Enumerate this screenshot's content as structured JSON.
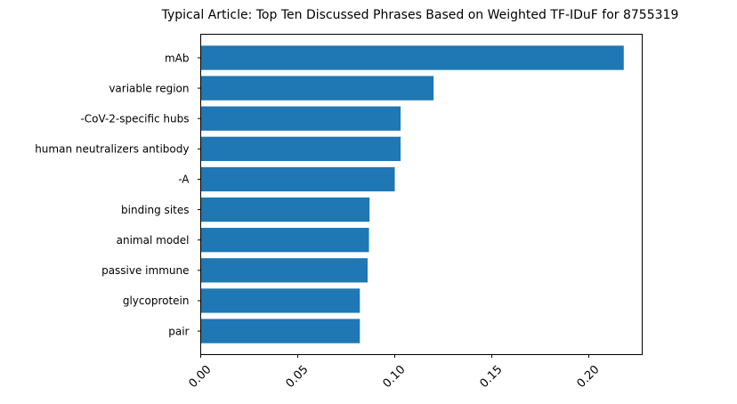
{
  "chart_data": {
    "type": "bar",
    "orientation": "horizontal",
    "title": "Typical Article: Top Ten Discussed Phrases Based on Weighted TF-IDuF for 8755319",
    "xlabel": "",
    "ylabel": "",
    "categories": [
      "mAb",
      "variable region",
      "-CoV-2-specific hubs",
      "human neutralizers antibody",
      "-A",
      "binding sites",
      "animal model",
      "passive immune",
      "glycoprotein",
      "pair"
    ],
    "values": [
      0.218,
      0.12,
      0.103,
      0.103,
      0.1,
      0.087,
      0.0867,
      0.086,
      0.082,
      0.082
    ],
    "xlim": [
      0,
      0.2275
    ],
    "xticks": [
      "0.00",
      "0.05",
      "0.10",
      "0.15",
      "0.20"
    ],
    "xtick_values": [
      0,
      0.05,
      0.1,
      0.15,
      0.2
    ],
    "grid": false,
    "bar_color": "#1f77b4"
  }
}
